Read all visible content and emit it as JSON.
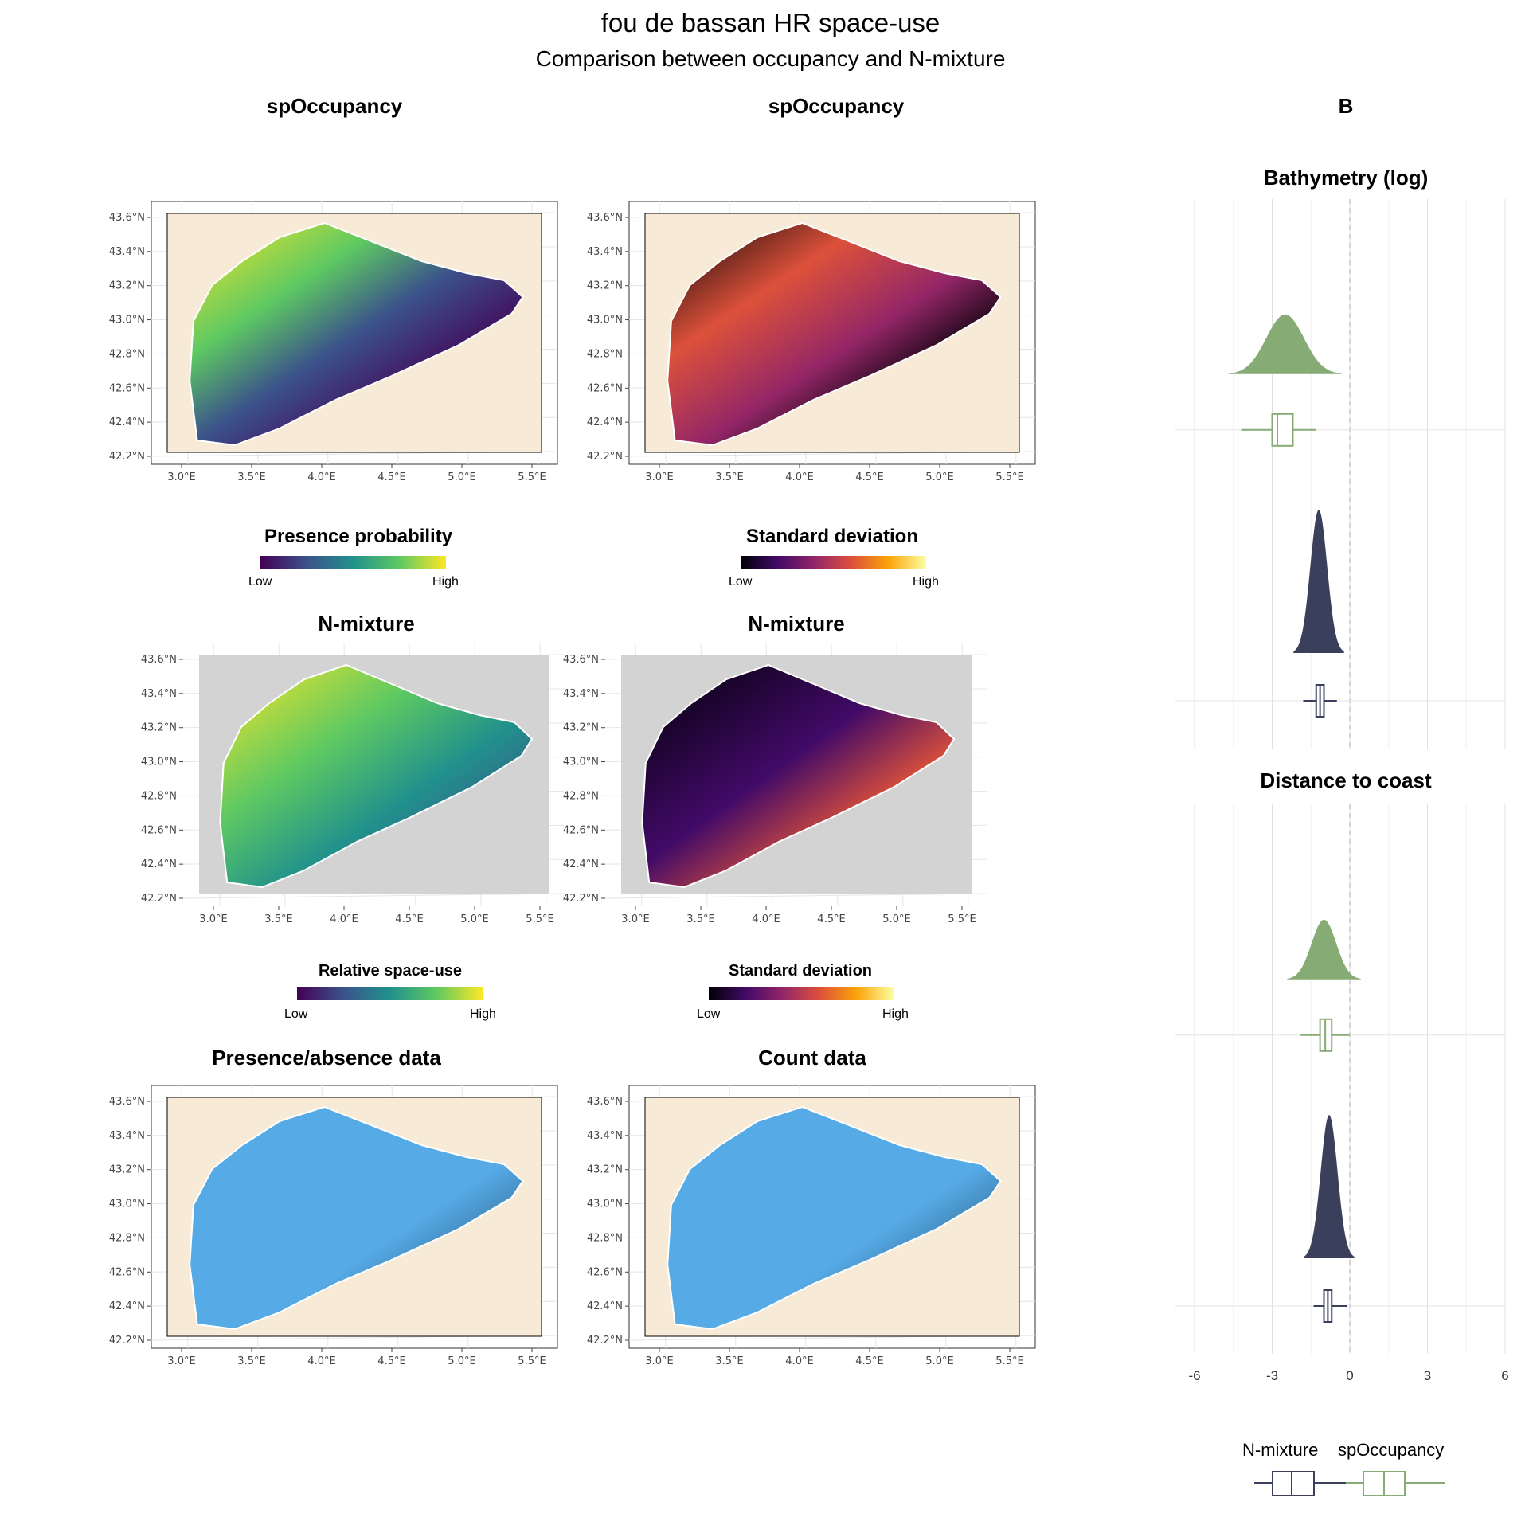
{
  "title": "fou de bassan HR space-use",
  "subtitle": "Comparison between occupancy and N-mixture",
  "colors": {
    "land": "#f7ebd8",
    "no_data": "#d3d3d3",
    "data_blue": "#56aae6",
    "nmixture": "#3a3f5c",
    "spoccupancy": "#87ab74"
  },
  "maps": {
    "lat_ticks": [
      "43.6°N",
      "43.4°N",
      "43.2°N",
      "43.0°N",
      "42.8°N",
      "42.6°N",
      "42.4°N",
      "42.2°N"
    ],
    "lon_ticks": [
      "3.0°E",
      "3.5°E",
      "4.0°E",
      "4.5°E",
      "5.0°E",
      "5.5°E"
    ],
    "row1": {
      "left_title": "spOccupancy",
      "right_title": "spOccupancy",
      "left_legend": {
        "title": "Presence probability",
        "low": "Low",
        "high": "High",
        "palette": "viridis"
      },
      "right_legend": {
        "title": "Standard deviation",
        "low": "Low",
        "high": "High",
        "palette": "inferno"
      }
    },
    "row2": {
      "left_title": "N-mixture",
      "right_title": "N-mixture",
      "left_legend": {
        "title": "Relative space-use",
        "low": "Low",
        "high": "High",
        "palette": "viridis"
      },
      "right_legend": {
        "title": "Standard deviation",
        "low": "Low",
        "high": "High",
        "palette": "inferno"
      }
    },
    "row3": {
      "left_title": "Presence/absence data",
      "right_title": "Count data"
    }
  },
  "panel_b": {
    "label": "B",
    "x_ticks": [
      "-6",
      "-3",
      "0",
      "3",
      "6"
    ],
    "legend": [
      "N-mixture",
      "spOccupancy"
    ]
  },
  "chart_data": {
    "type": "box",
    "xlim": [
      -6,
      6
    ],
    "reference_line": 0,
    "facets": [
      {
        "title": "Bathymetry (log)",
        "series": [
          {
            "name": "spOccupancy",
            "box": {
              "min": -4.2,
              "q1": -3.0,
              "median": -2.8,
              "q3": -2.2,
              "max": -1.3
            },
            "density_mode": -2.5
          },
          {
            "name": "N-mixture",
            "box": {
              "min": -1.8,
              "q1": -1.3,
              "median": -1.15,
              "q3": -1.0,
              "max": -0.5
            },
            "density_mode": -1.2
          }
        ]
      },
      {
        "title": "Distance to coast",
        "series": [
          {
            "name": "spOccupancy",
            "box": {
              "min": -1.9,
              "q1": -1.15,
              "median": -0.95,
              "q3": -0.7,
              "max": 0.0
            },
            "density_mode": -1.0
          },
          {
            "name": "N-mixture",
            "box": {
              "min": -1.4,
              "q1": -1.0,
              "median": -0.85,
              "q3": -0.7,
              "max": -0.1
            },
            "density_mode": -0.8
          }
        ]
      }
    ]
  }
}
